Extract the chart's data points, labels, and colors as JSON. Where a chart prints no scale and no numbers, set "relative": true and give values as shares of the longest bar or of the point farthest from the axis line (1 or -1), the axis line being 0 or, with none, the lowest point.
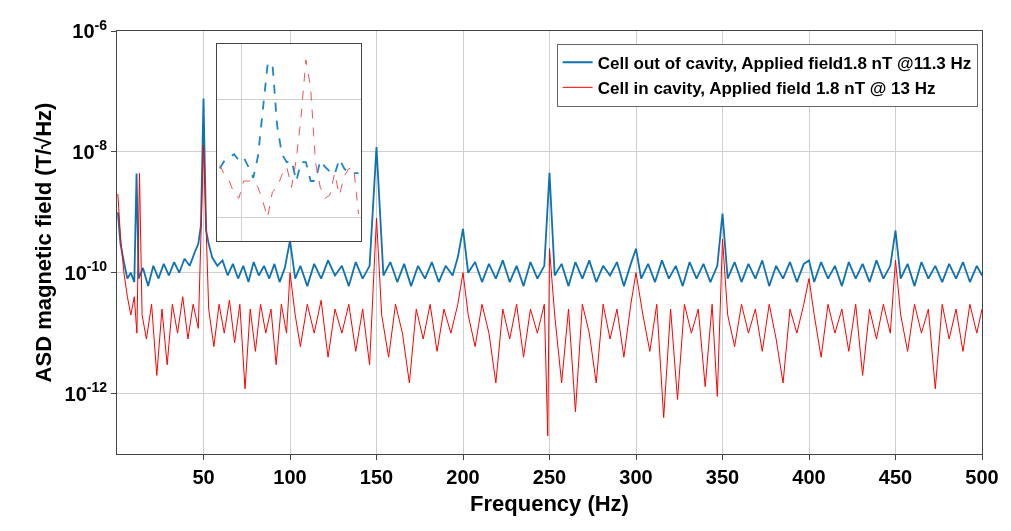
{
  "chart_data": [
    {
      "type": "line",
      "xlabel": "Frequency (Hz)",
      "ylabel": "ASD magnetic field (T/√Hz)",
      "log": "y",
      "grid": true,
      "legend": "top right",
      "marker": "none",
      "line_style": "solid",
      "xlim": [
        0,
        500
      ],
      "xticks": [
        50,
        100,
        150,
        200,
        250,
        300,
        350,
        400,
        450,
        500
      ],
      "ylim": [
        1e-13,
        1e-06
      ],
      "yticks": [
        {
          "value": 1e-12,
          "label": "10$^{-12}$"
        },
        {
          "value": 1e-10,
          "label": "10$^{-10}$"
        },
        {
          "value": 1e-08,
          "label": "10$^{-8}$"
        },
        {
          "value": 1e-06,
          "label": "10$^{-6}$"
        }
      ],
      "series": [
        {
          "name": "Cell out of cavity, Applied field1.8 nT @11.3 Hz",
          "color": "#0f72b0",
          "x": [
            0.5,
            2,
            4,
            6,
            8,
            10,
            11.3,
            12.5,
            15,
            18,
            21,
            24,
            27,
            30,
            33,
            36,
            39,
            42,
            45,
            47,
            48.5,
            50,
            51.5,
            53,
            55,
            58,
            61,
            64,
            67,
            70,
            73,
            76,
            79,
            82,
            85,
            88,
            91,
            94,
            97,
            100,
            103,
            106,
            110,
            114,
            118,
            122,
            126,
            130,
            134,
            138,
            142,
            146,
            150,
            154,
            158,
            162,
            166,
            170,
            174,
            178,
            182,
            186,
            190,
            194,
            197,
            200,
            203,
            207,
            211,
            215,
            219,
            223,
            227,
            231,
            235,
            239,
            243,
            247,
            250,
            253,
            257,
            261,
            265,
            269,
            273,
            277,
            281,
            285,
            289,
            293,
            297,
            300,
            303,
            307,
            311,
            315,
            319,
            323,
            327,
            331,
            335,
            339,
            343,
            347,
            350,
            353,
            357,
            361,
            365,
            369,
            373,
            377,
            381,
            385,
            389,
            393,
            397,
            400,
            403,
            407,
            411,
            415,
            419,
            423,
            427,
            431,
            435,
            439,
            443,
            447,
            450,
            453,
            457,
            461,
            465,
            469,
            473,
            477,
            481,
            485,
            489,
            493,
            497,
            500
          ],
          "values": [
            1e-09,
            3e-10,
            1.5e-10,
            8e-11,
            1e-10,
            7e-11,
            4.4e-09,
            8e-11,
            1.2e-10,
            6e-11,
            1.3e-10,
            8e-11,
            1.4e-10,
            9e-11,
            1.5e-10,
            1e-10,
            1.7e-10,
            1.3e-10,
            2.2e-10,
            3e-10,
            6e-10,
            7.6e-08,
            5e-10,
            3e-10,
            1.8e-10,
            1.3e-10,
            1.6e-10,
            9e-11,
            1.4e-10,
            8e-11,
            1.3e-10,
            7e-11,
            1.5e-10,
            9e-11,
            1.3e-10,
            8e-11,
            1.4e-10,
            7e-11,
            1.2e-10,
            3.4e-10,
            8e-11,
            1.3e-10,
            6e-11,
            1.4e-10,
            8e-11,
            1.6e-10,
            9e-11,
            1.3e-10,
            6e-11,
            1.5e-10,
            8e-11,
            1.3e-10,
            1.2e-08,
            9e-11,
            1.5e-10,
            7e-11,
            1.4e-10,
            6e-11,
            1.3e-10,
            8e-11,
            1.5e-10,
            7e-11,
            1.3e-10,
            9e-11,
            1.8e-10,
            5.3e-10,
            1e-10,
            1.5e-10,
            7e-11,
            1.4e-10,
            8e-11,
            1.6e-10,
            7e-11,
            1.3e-10,
            6e-11,
            1.5e-10,
            8e-11,
            1.3e-10,
            4.5e-09,
            9e-11,
            1.4e-10,
            6e-11,
            1.5e-10,
            8e-11,
            1.6e-10,
            7e-11,
            1.3e-10,
            9e-11,
            1.5e-10,
            6e-11,
            1.4e-10,
            2.5e-10,
            8e-11,
            1.4e-10,
            7e-11,
            1.6e-10,
            8e-11,
            1.3e-10,
            6e-11,
            1.5e-10,
            8e-11,
            1.4e-10,
            7e-11,
            1.3e-10,
            9.5e-10,
            8e-11,
            1.5e-10,
            7e-11,
            1.4e-10,
            8e-11,
            1.6e-10,
            6e-11,
            1.3e-10,
            8e-11,
            1.5e-10,
            7e-11,
            1.4e-10,
            1.6e-10,
            7e-11,
            1.5e-10,
            8e-11,
            1.3e-10,
            6e-11,
            1.5e-10,
            8e-11,
            1.4e-10,
            7e-11,
            1.6e-10,
            8e-11,
            1.3e-10,
            5e-10,
            8e-11,
            1.4e-10,
            6e-11,
            1.5e-10,
            8e-11,
            1.3e-10,
            7e-11,
            1.4e-10,
            8e-11,
            1.5e-10,
            7e-11,
            1.3e-10,
            9e-11
          ]
        },
        {
          "name": "Cell in cavity, Applied field 1.8 nT @ 13 Hz",
          "color": "#ff0000",
          "x": [
            0.5,
            2,
            4,
            6,
            8,
            10,
            11.5,
            13,
            14.5,
            17,
            20,
            23,
            26,
            29,
            32,
            35,
            38,
            41,
            44,
            47,
            50,
            53,
            56,
            59,
            62,
            65,
            68,
            71,
            74,
            77,
            80,
            83,
            86,
            89,
            92,
            95,
            98,
            100,
            103,
            106,
            110,
            114,
            118,
            122,
            126,
            130,
            134,
            138,
            142,
            146,
            150,
            153,
            157,
            161,
            165,
            169,
            173,
            177,
            181,
            185,
            189,
            193,
            197,
            200,
            203,
            207,
            211,
            215,
            219,
            223,
            227,
            231,
            235,
            239,
            243,
            247,
            249,
            250,
            253,
            257,
            261,
            265,
            269,
            273,
            277,
            281,
            285,
            289,
            293,
            297,
            300,
            304,
            308,
            312,
            316,
            320,
            324,
            328,
            332,
            336,
            340,
            344,
            347,
            350,
            353,
            357,
            361,
            365,
            369,
            373,
            377,
            381,
            385,
            389,
            393,
            397,
            400,
            403,
            407,
            411,
            415,
            419,
            423,
            427,
            431,
            435,
            439,
            443,
            447,
            450,
            453,
            457,
            461,
            465,
            469,
            473,
            477,
            481,
            485,
            489,
            493,
            497,
            500
          ],
          "values": [
            2e-09,
            4e-10,
            1e-10,
            4e-11,
            2e-11,
            4e-11,
            1e-11,
            4.4e-09,
            2e-11,
            8e-12,
            3e-11,
            2e-12,
            2.5e-11,
            3e-12,
            3e-11,
            1e-11,
            4e-11,
            8e-12,
            3e-11,
            1.2e-11,
            1.3e-08,
            2.5e-11,
            6e-12,
            3e-11,
            1e-11,
            3.5e-11,
            7e-12,
            3e-11,
            1.2e-12,
            2.5e-11,
            5e-12,
            3e-11,
            1e-11,
            2.5e-11,
            3e-12,
            3e-11,
            1e-11,
            1e-10,
            2e-11,
            6e-12,
            3e-11,
            1e-11,
            3.5e-11,
            4e-12,
            2.5e-11,
            1e-11,
            3e-11,
            5e-12,
            2.5e-11,
            3e-12,
            8e-10,
            2e-11,
            4e-12,
            3e-11,
            1e-11,
            1.5e-12,
            2.5e-11,
            8e-12,
            3e-11,
            5e-12,
            2.5e-11,
            1e-11,
            3e-11,
            1e-10,
            2e-11,
            6e-12,
            3e-11,
            1e-11,
            1.5e-12,
            2.5e-11,
            8e-12,
            3e-11,
            4e-12,
            2.5e-11,
            1e-11,
            3e-11,
            2e-13,
            2.5e-10,
            2e-11,
            1.5e-12,
            2.5e-11,
            5e-13,
            3e-11,
            1e-11,
            1.5e-12,
            3e-11,
            8e-12,
            2.5e-11,
            4e-12,
            3e-11,
            1e-10,
            2e-11,
            5e-12,
            3e-11,
            4e-13,
            2.5e-11,
            8e-13,
            3e-11,
            1e-11,
            2.5e-11,
            1.3e-12,
            3e-11,
            9e-13,
            3.6e-10,
            2e-11,
            6e-12,
            3e-11,
            1e-11,
            2.5e-11,
            5e-12,
            3e-11,
            8e-12,
            1.5e-12,
            2.5e-11,
            1e-11,
            3e-11,
            8e-11,
            2e-11,
            4e-12,
            3e-11,
            1e-11,
            2.5e-11,
            5e-12,
            3e-11,
            2e-12,
            2.5e-11,
            8e-12,
            3e-11,
            1e-11,
            1.6e-10,
            2e-11,
            5e-12,
            3e-11,
            1e-11,
            2.5e-11,
            1.2e-12,
            3e-11,
            8e-12,
            2.5e-11,
            5e-12,
            3e-11,
            1e-11,
            2.5e-11
          ]
        }
      ]
    },
    {
      "type": "line",
      "relative": true,
      "grid": true,
      "tick_labels": false,
      "line_style": "dashed",
      "marker": "none",
      "categories": [
        null,
        null,
        null,
        null,
        null,
        null,
        null,
        null,
        null,
        null,
        null,
        null,
        null,
        null,
        null,
        null,
        null,
        null,
        null,
        null,
        null,
        null,
        null,
        null,
        null,
        null,
        null,
        null,
        null,
        null
      ],
      "series": [
        {
          "color": "#1a86c8",
          "values": [
            0.31,
            0.36,
            0.38,
            0.4,
            0.36,
            0.38,
            0.32,
            0.25,
            0.39,
            0.68,
            0.97,
            0.98,
            0.58,
            0.4,
            0.35,
            0.36,
            0.23,
            0.35,
            0.35,
            0.23,
            0.23,
            0.36,
            0.32,
            0.29,
            0.27,
            0.37,
            0.31,
            0.28,
            0.28,
            0.28
          ]
        },
        {
          "color": "#f2545b",
          "values": [
            0.33,
            0.27,
            0.23,
            0.15,
            0.12,
            0.23,
            0.23,
            0.23,
            0.19,
            0.1,
            0.0,
            0.16,
            0.19,
            0.27,
            0.32,
            0.19,
            0.37,
            0.64,
            1.0,
            0.82,
            0.35,
            0.19,
            0.12,
            0.14,
            0.28,
            0.14,
            0.26,
            0.31,
            0.31,
            0.02
          ]
        }
      ]
    }
  ]
}
